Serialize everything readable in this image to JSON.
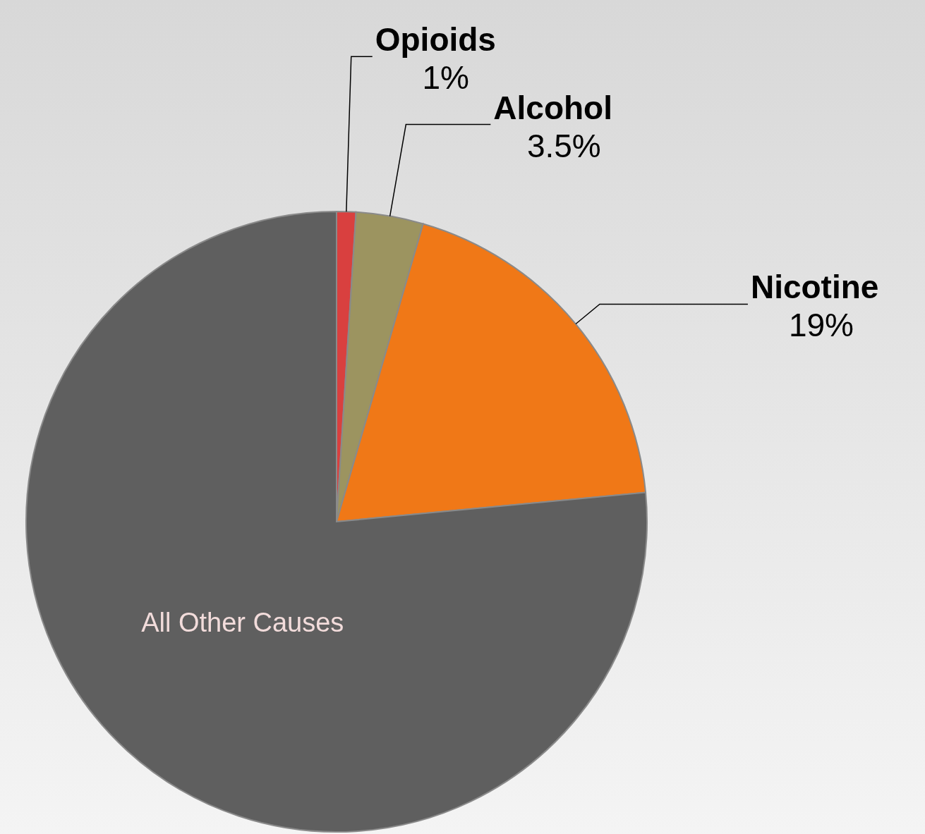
{
  "chart_data": {
    "type": "pie",
    "categories": [
      "Opioids",
      "Alcohol",
      "Nicotine",
      "All Other Causes"
    ],
    "values": [
      1,
      3.5,
      19,
      76.5
    ],
    "colors": [
      "#d9403f",
      "#9c9460",
      "#f07817",
      "#5f5f5f"
    ],
    "value_labels": [
      "1%",
      "3.5%",
      "19%",
      null
    ]
  }
}
